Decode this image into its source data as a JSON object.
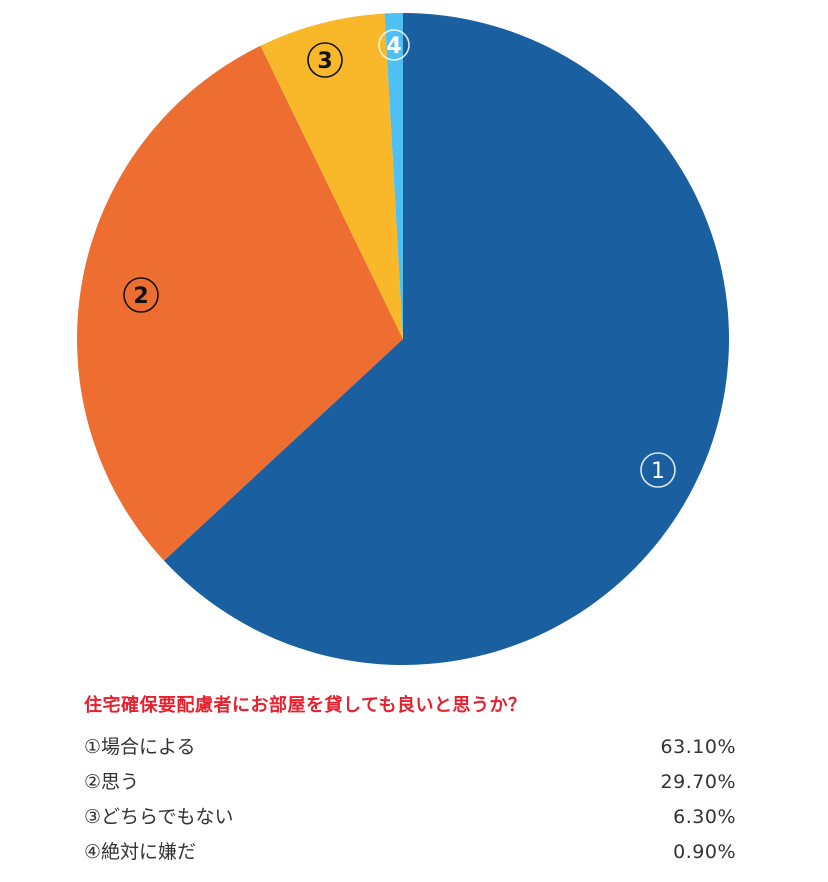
{
  "chart_data": {
    "type": "pie",
    "title": "住宅確保要配慮者にお部屋を貸しても良いと思うか？",
    "start_angle_deg": 0,
    "direction": "clockwise",
    "categories": [
      "①場合による",
      "②思う",
      "③どちらでもない",
      "④絶対に嫌だ"
    ],
    "values": [
      63.1,
      29.7,
      6.3,
      0.9
    ],
    "value_labels": [
      "63.10%",
      "29.70%",
      "6.30%",
      "0.90%"
    ],
    "slice_labels": [
      "①",
      "②",
      "③",
      "④"
    ],
    "colors": [
      "#1a5fa0",
      "#ee6e31",
      "#f8b82a",
      "#4ec0f3"
    ],
    "label_colors": [
      "#ffffff",
      "#111111",
      "#111111",
      "#ffffff"
    ]
  },
  "legend": {
    "title": "住宅確保要配慮者にお部屋を貸しても良いと思うか？",
    "items": [
      {
        "label": "①場合による",
        "value": "63.10%"
      },
      {
        "label": "②思う",
        "value": "29.70%"
      },
      {
        "label": "③どちらでもない",
        "value": "6.30%"
      },
      {
        "label": "④絶対に嫌だ",
        "value": "0.90%"
      }
    ]
  }
}
